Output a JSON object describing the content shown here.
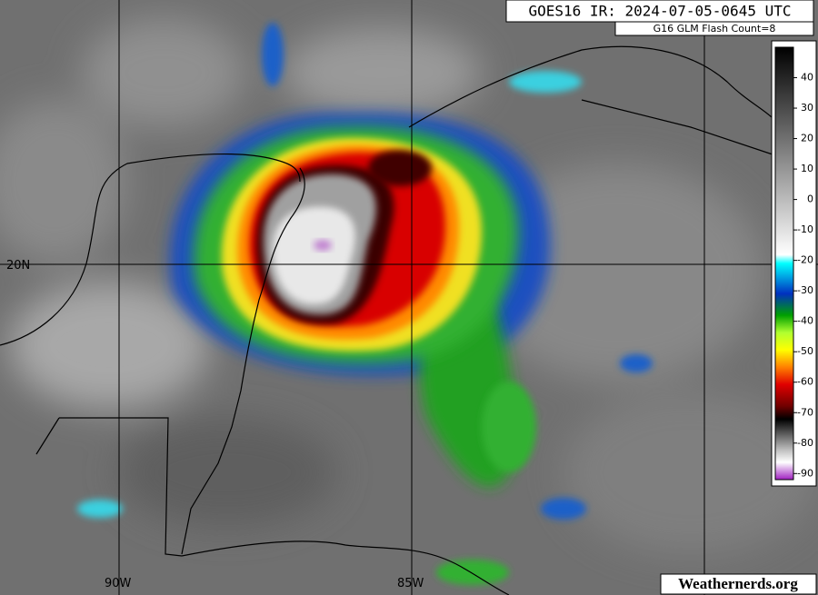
{
  "header": {
    "title": "GOES16 IR: 2024-07-05-0645 UTC",
    "subtitle": "G16 GLM Flash Count=8"
  },
  "colorbar": {
    "range": [
      -92,
      50
    ],
    "ticks": [
      40,
      30,
      20,
      10,
      0,
      -10,
      -20,
      -30,
      -40,
      -50,
      -60,
      -70,
      -80,
      -90
    ]
  },
  "graticule": {
    "lat_labels": [
      "20N"
    ],
    "lon_labels": [
      "90W",
      "85W"
    ]
  },
  "credit": "Weathernerds.org"
}
